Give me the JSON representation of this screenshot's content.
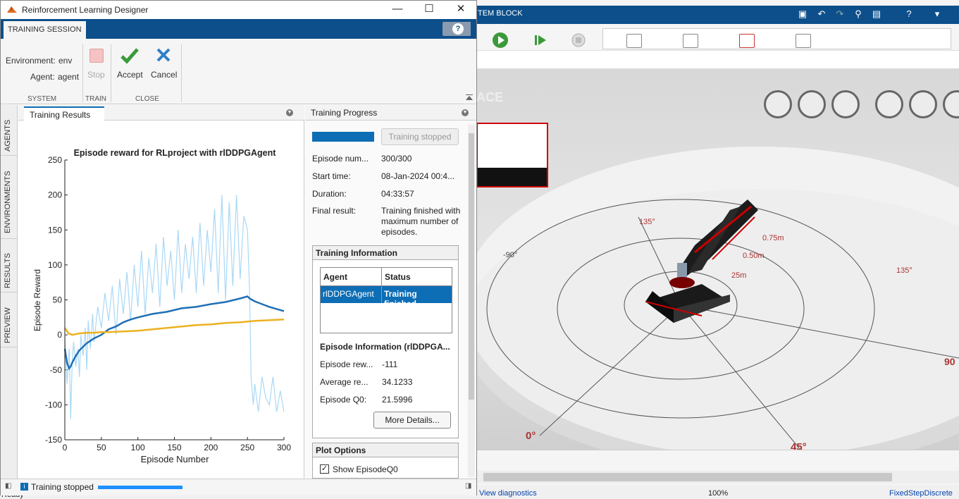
{
  "window": {
    "title": "Reinforcement Learning Designer",
    "minimize": "—",
    "maximize": "☐",
    "close": "✕"
  },
  "tab": {
    "label": "TRAINING SESSION",
    "help": "?"
  },
  "ribbon": {
    "environment_label": "Environment:",
    "environment_value": "env",
    "agent_label": "Agent:",
    "agent_value": "agent",
    "stop": "Stop",
    "accept": "Accept",
    "cancel": "Cancel",
    "sections": [
      "SYSTEM",
      "TRAIN",
      "CLOSE"
    ]
  },
  "vtabs": [
    "AGENTS",
    "ENVIRONMENTS",
    "RESULTS",
    "PREVIEW"
  ],
  "results_tab": "Training Results",
  "chart_data": {
    "type": "line",
    "title": "Episode reward for RLproject with rlDDPGAgent",
    "xlabel": "Episode Number",
    "ylabel": "Episode Reward",
    "xlim": [
      0,
      300
    ],
    "ylim": [
      -150,
      250
    ],
    "xticks": [
      "0",
      "50",
      "100",
      "150",
      "200",
      "250",
      "300"
    ],
    "yticks": [
      "250",
      "200",
      "150",
      "100",
      "50",
      "0",
      "-50",
      "-100",
      "-150"
    ],
    "series": [
      {
        "color": "#a9d8f5",
        "x": [
          0,
          3,
          6,
          8,
          10,
          12,
          15,
          18,
          20,
          22,
          25,
          28,
          30,
          32,
          35,
          38,
          40,
          45,
          50,
          55,
          60,
          65,
          70,
          75,
          80,
          85,
          90,
          95,
          100,
          105,
          110,
          115,
          120,
          125,
          130,
          135,
          140,
          145,
          150,
          155,
          160,
          165,
          170,
          175,
          180,
          185,
          190,
          195,
          200,
          205,
          210,
          215,
          220,
          225,
          230,
          235,
          240,
          245,
          250,
          253,
          255,
          258,
          260,
          265,
          270,
          275,
          280,
          285,
          290,
          295,
          300
        ],
        "y": [
          5,
          -70,
          -20,
          -120,
          -40,
          -10,
          -45,
          -20,
          -60,
          0,
          -30,
          10,
          -50,
          20,
          -20,
          30,
          -10,
          40,
          10,
          60,
          20,
          70,
          0,
          80,
          30,
          90,
          20,
          100,
          40,
          120,
          30,
          110,
          60,
          130,
          40,
          140,
          70,
          120,
          50,
          150,
          60,
          130,
          80,
          140,
          60,
          160,
          70,
          150,
          90,
          180,
          60,
          200,
          50,
          190,
          70,
          200,
          80,
          170,
          150,
          60,
          -60,
          -100,
          -70,
          -110,
          -60,
          -90,
          -100,
          -60,
          -110,
          -80,
          -110
        ]
      },
      {
        "color": "#1f6fb5",
        "x": [
          0,
          3,
          6,
          8,
          10,
          15,
          20,
          30,
          40,
          50,
          60,
          70,
          80,
          90,
          100,
          120,
          140,
          160,
          180,
          200,
          220,
          240,
          250,
          253,
          260,
          270,
          280,
          290,
          300
        ],
        "y": [
          -20,
          -40,
          -48,
          -45,
          -40,
          -30,
          -22,
          -12,
          -5,
          0,
          8,
          12,
          18,
          22,
          25,
          30,
          33,
          38,
          40,
          44,
          47,
          52,
          55,
          52,
          48,
          44,
          40,
          37,
          34
        ]
      },
      {
        "color": "#edb120",
        "x": [
          0,
          5,
          10,
          20,
          30,
          40,
          50,
          60,
          80,
          100,
          120,
          140,
          160,
          180,
          200,
          220,
          240,
          260,
          280,
          300
        ],
        "y": [
          10,
          2,
          0,
          2,
          3,
          3,
          4,
          4,
          5,
          6,
          8,
          10,
          12,
          14,
          15,
          17,
          18,
          20,
          21,
          22
        ]
      }
    ]
  },
  "progress": {
    "title": "Training Progress",
    "status_button": "Training stopped",
    "progress_fraction": 1.0,
    "rows": [
      {
        "k": "Episode num...",
        "v": "300/300"
      },
      {
        "k": "Start time:",
        "v": "08-Jan-2024 00:4..."
      },
      {
        "k": "Duration:",
        "v": "04:33:57"
      },
      {
        "k": "Final result:",
        "v": "Training finished with maximum number of episodes."
      }
    ],
    "training_info": {
      "title": "Training Information",
      "headers": [
        "Agent",
        "Status"
      ],
      "row": [
        "rlDDPGAgent",
        "Training finished"
      ],
      "episode_info_title": "Episode Information (rlDDPGA...",
      "items": [
        {
          "k": "Episode rew...",
          "v": "-111"
        },
        {
          "k": "Average re...",
          "v": "34.1233"
        },
        {
          "k": "Episode Q0:",
          "v": "21.5996"
        }
      ],
      "more_button": "More Details..."
    },
    "plot_options": {
      "title": "Plot Options",
      "checkbox_label": "Show EpisodeQ0",
      "checked": true
    }
  },
  "status": {
    "text": "Training stopped"
  },
  "background": {
    "tab_label": "TEM BLOCK",
    "canvas_text": "ACE",
    "status_ready": "Ready",
    "view_diagnostics": "View diagnostics",
    "zoom": "100%",
    "solver": "FixedStepDiscrete",
    "labels": [
      "135°",
      "-90°",
      "0.75m",
      "0.50m",
      "135°",
      "90",
      "0°",
      "45°",
      "25m"
    ]
  }
}
